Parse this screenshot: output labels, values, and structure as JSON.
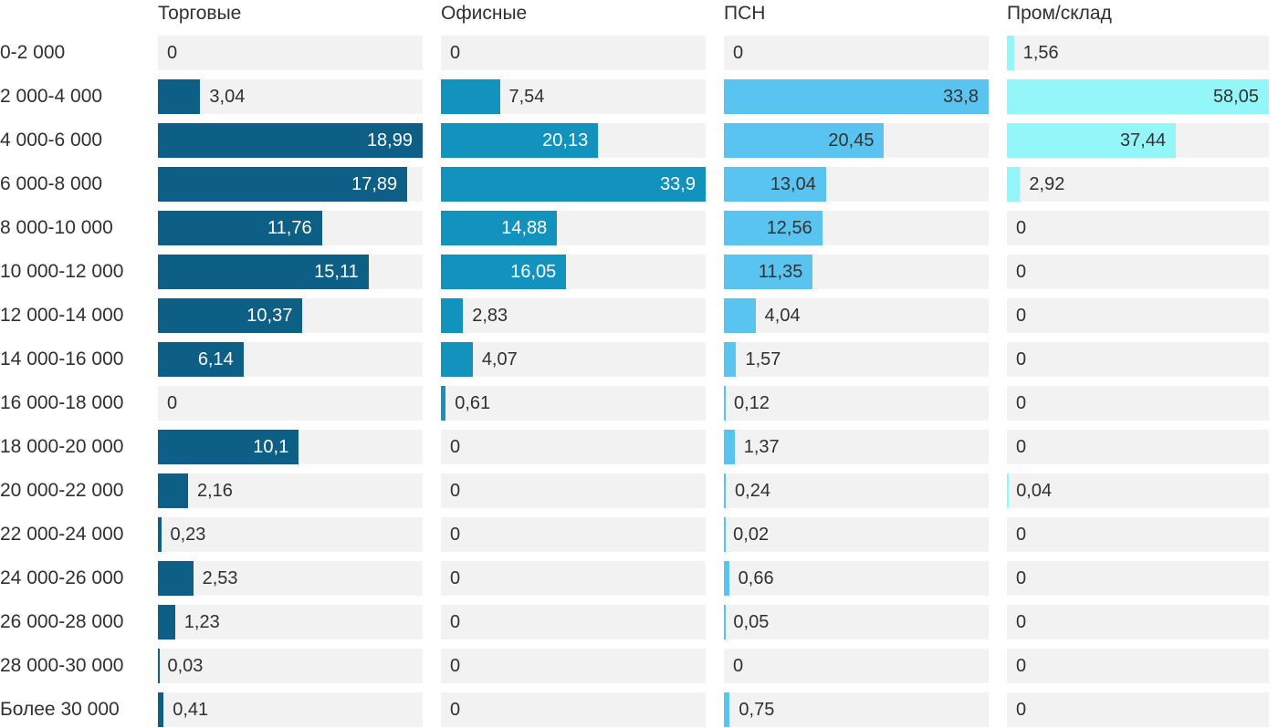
{
  "chart_data": {
    "type": "bar",
    "orientation": "horizontal",
    "scaling": "each column normalized to its own maximum value",
    "track_color": "#f2f2f2",
    "text_color": "#303030",
    "categories": [
      "0-2 000",
      "2 000-4 000",
      "4 000-6 000",
      "6 000-8 000",
      "8 000-10 000",
      "10 000-12 000",
      "12 000-14 000",
      "14 000-16 000",
      "16 000-18 000",
      "18 000-20 000",
      "20 000-22 000",
      "22 000-24 000",
      "24 000-26 000",
      "26 000-28 000",
      "28 000-30 000",
      "Более 30 000"
    ],
    "series": [
      {
        "name": "Торговые",
        "color": "#0e5f85",
        "inside_label_color": "#ffffff",
        "values": [
          0,
          3.04,
          18.99,
          17.89,
          11.76,
          15.11,
          10.37,
          6.14,
          0,
          10.1,
          2.16,
          0.23,
          2.53,
          1.23,
          0.03,
          0.41
        ],
        "display_values": [
          "0",
          "3,04",
          "18,99",
          "17,89",
          "11,76",
          "15,11",
          "10,37",
          "6,14",
          "0",
          "10,1",
          "2,16",
          "0,23",
          "2,53",
          "1,23",
          "0,03",
          "0,41"
        ]
      },
      {
        "name": "Офисные",
        "color": "#1193be",
        "inside_label_color": "#ffffff",
        "values": [
          0,
          7.54,
          20.13,
          33.9,
          14.88,
          16.05,
          2.83,
          4.07,
          0.61,
          0,
          0,
          0,
          0,
          0,
          0,
          0
        ],
        "display_values": [
          "0",
          "7,54",
          "20,13",
          "33,9",
          "14,88",
          "16,05",
          "2,83",
          "4,07",
          "0,61",
          "0",
          "0",
          "0",
          "0",
          "0",
          "0",
          "0"
        ]
      },
      {
        "name": "ПСН",
        "color": "#5ac4f0",
        "inside_label_color": "#333333",
        "values": [
          0,
          33.8,
          20.45,
          13.04,
          12.56,
          11.35,
          4.04,
          1.57,
          0.12,
          1.37,
          0.24,
          0.02,
          0.66,
          0.05,
          0,
          0.75
        ],
        "display_values": [
          "0",
          "33,8",
          "20,45",
          "13,04",
          "12,56",
          "11,35",
          "4,04",
          "1,57",
          "0,12",
          "1,37",
          "0,24",
          "0,02",
          "0,66",
          "0,05",
          "0",
          "0,75"
        ]
      },
      {
        "name": "Пром/склад",
        "color": "#93f7fa",
        "inside_label_color": "#333333",
        "values": [
          1.56,
          58.05,
          37.44,
          2.92,
          0,
          0,
          0,
          0,
          0,
          0,
          0.04,
          0,
          0,
          0,
          0,
          0
        ],
        "display_values": [
          "1,56",
          "58,05",
          "37,44",
          "2,92",
          "0",
          "0",
          "0",
          "0",
          "0",
          "0",
          "0,04",
          "0",
          "0",
          "0",
          "0",
          "0"
        ]
      }
    ]
  }
}
